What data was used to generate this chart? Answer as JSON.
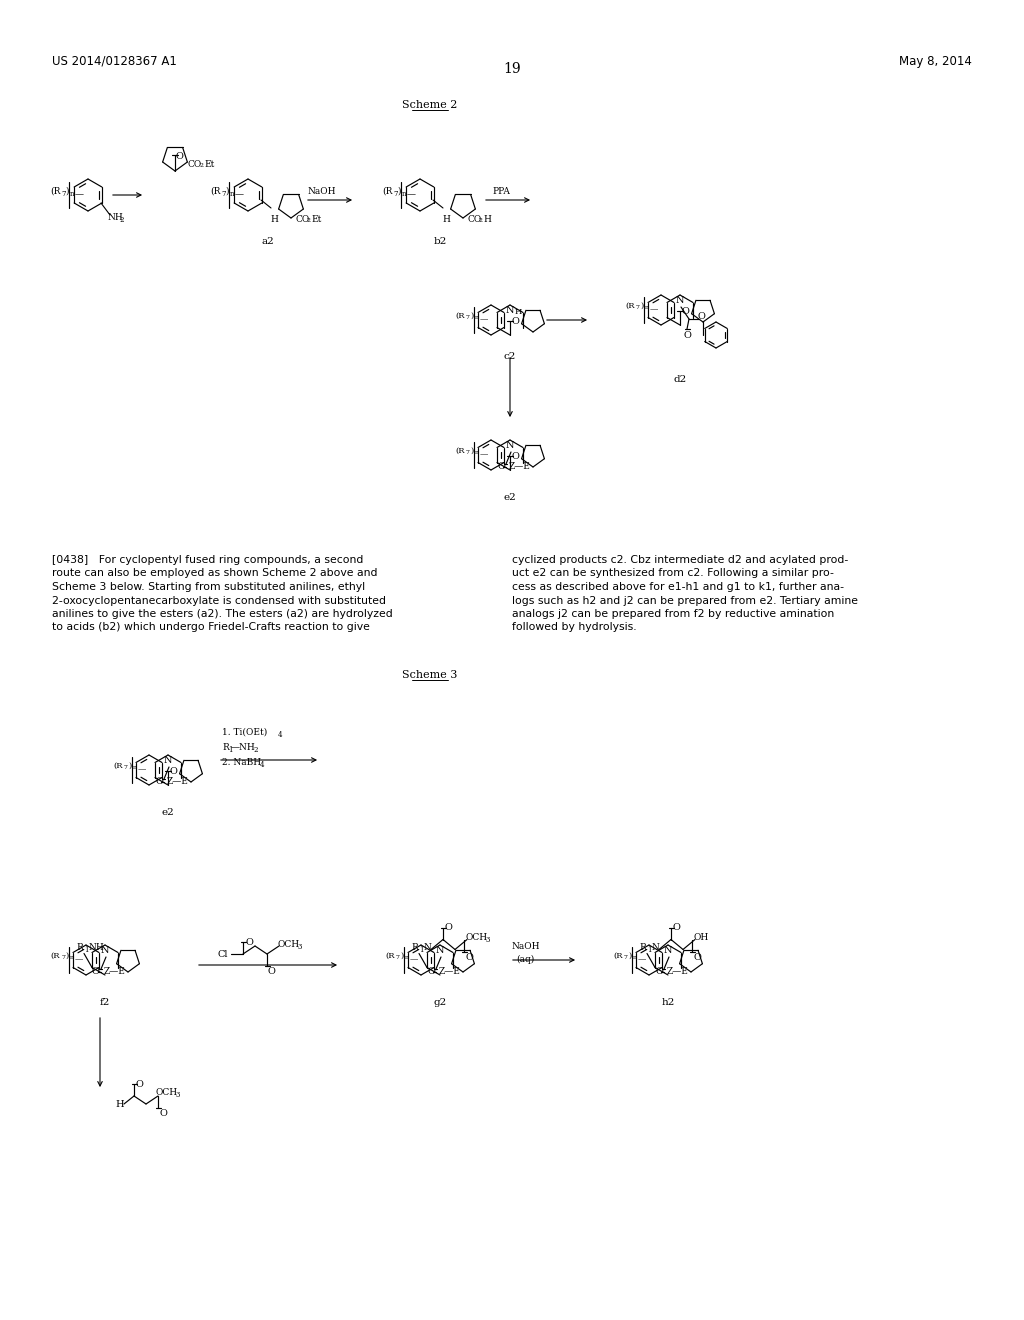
{
  "header_left": "US 2014/0128367 A1",
  "header_right": "May 8, 2014",
  "page_number": "19",
  "scheme2_title": "Scheme 2",
  "scheme3_title": "Scheme 3",
  "bg_color": "#ffffff",
  "text_color": "#000000",
  "paragraph_left": "[0438]   For cyclopentyl fused ring compounds, a second\nroute can also be employed as shown Scheme 2 above and\nScheme 3 below. Starting from substituted anilines, ethyl\n2-oxocyclopentanecarboxylate is condensed with substituted\nanilines to give the esters (a2). The esters (a2) are hydrolyzed\nto acids (b2) which undergo Friedel-Crafts reaction to give",
  "paragraph_right": "cyclized products c2. Cbz intermediate d2 and acylated prod-\nuct e2 can be synthesized from c2. Following a similar pro-\ncess as described above for e1-h1 and g1 to k1, further ana-\nlogs such as h2 and j2 can be prepared from e2. Tertiary amine\nanalogs j2 can be prepared from f2 by reductive amination\nfollowed by hydrolysis."
}
